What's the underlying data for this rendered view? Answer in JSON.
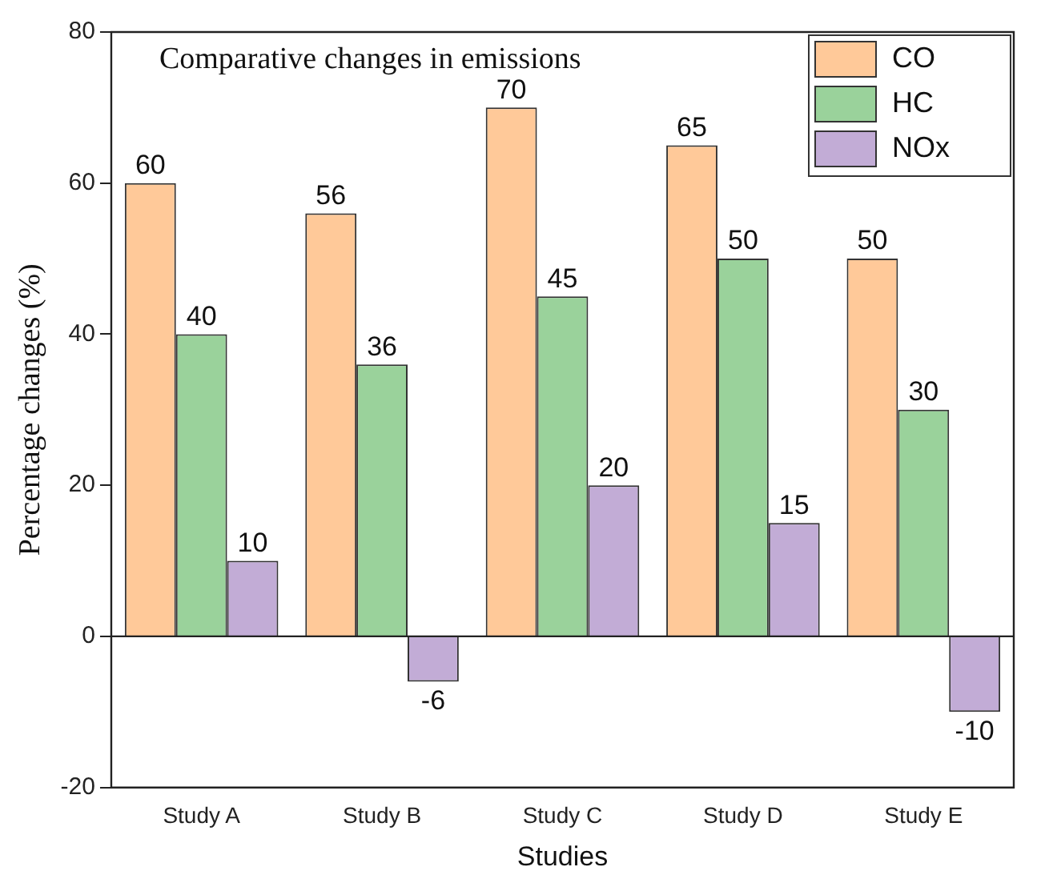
{
  "chart_data": {
    "type": "bar",
    "title": "Comparative changes in emissions",
    "xlabel": "Studies",
    "ylabel": "Percentage changes (%)",
    "categories": [
      "Study A",
      "Study B",
      "Study C",
      "Study D",
      "Study E"
    ],
    "series": [
      {
        "name": "CO",
        "color": "#ffc999",
        "values": [
          60,
          56,
          70,
          65,
          50
        ]
      },
      {
        "name": "HC",
        "color": "#9ad29b",
        "values": [
          40,
          36,
          45,
          50,
          30
        ]
      },
      {
        "name": "NOx",
        "color": "#c2acd6",
        "values": [
          10,
          -6,
          20,
          15,
          -10
        ]
      }
    ],
    "ref_lines": [
      {
        "axis": "y",
        "value": 0,
        "color": "#222222"
      }
    ],
    "ylim": [
      -20,
      80
    ],
    "yticks": [
      -20,
      0,
      20,
      40,
      60,
      80
    ],
    "grid": false,
    "legend": "top right",
    "data_labels": true
  }
}
